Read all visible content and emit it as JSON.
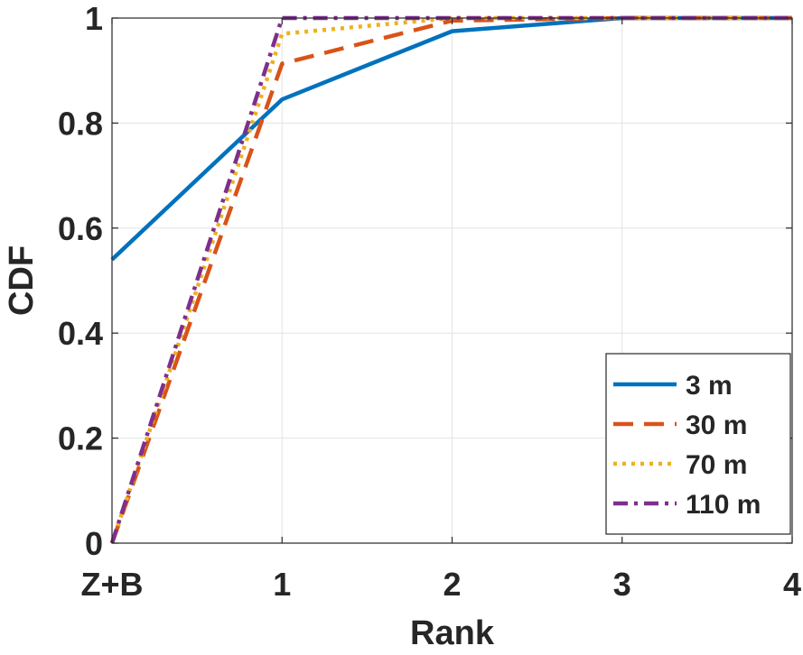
{
  "chart_data": {
    "type": "line",
    "xlabel": "Rank",
    "ylabel": "CDF",
    "x_tick_labels": [
      "Z+B",
      "1",
      "2",
      "3",
      "4"
    ],
    "x_ticks": [
      0,
      1,
      2,
      3,
      4
    ],
    "y_tick_labels": [
      "0",
      "0.2",
      "0.4",
      "0.6",
      "0.8",
      "1"
    ],
    "y_ticks": [
      0,
      0.2,
      0.4,
      0.6,
      0.8,
      1.0
    ],
    "xlim": [
      0,
      4
    ],
    "ylim": [
      0,
      1
    ],
    "grid": true,
    "legend_position": "bottom-right",
    "series": [
      {
        "name": "3 m",
        "color": "#0072BD",
        "dash": "solid",
        "x": [
          0,
          1,
          2,
          3,
          4
        ],
        "y": [
          0.54,
          0.845,
          0.975,
          1.0,
          1.0
        ]
      },
      {
        "name": "30 m",
        "color": "#D95319",
        "dash": "dashed",
        "x": [
          0,
          1,
          2,
          3,
          4
        ],
        "y": [
          0.0,
          0.913,
          0.995,
          1.0,
          1.0
        ]
      },
      {
        "name": "70 m",
        "color": "#EDB120",
        "dash": "dotted",
        "x": [
          0,
          1,
          2,
          3,
          4
        ],
        "y": [
          0.0,
          0.97,
          1.0,
          1.0,
          1.0
        ]
      },
      {
        "name": "110 m",
        "color": "#7E2F8E",
        "dash": "dash-dot",
        "x": [
          0,
          1,
          2,
          3,
          4
        ],
        "y": [
          0.0,
          1.0,
          1.0,
          1.0,
          1.0
        ]
      }
    ]
  }
}
